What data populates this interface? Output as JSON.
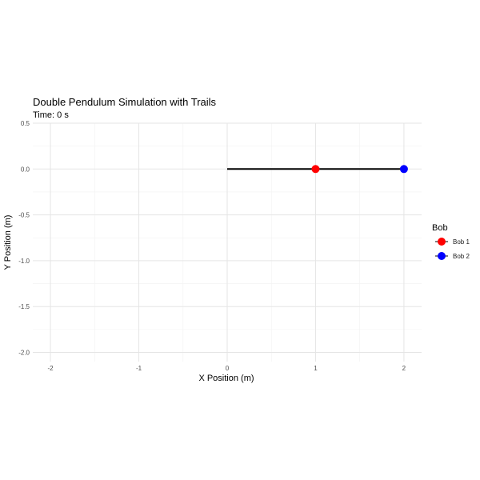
{
  "chart_data": {
    "type": "line",
    "title": "Double Pendulum Simulation with Trails",
    "subtitle": "Time: 0 s",
    "xlabel": "X Position (m)",
    "ylabel": "Y Position (m)",
    "xlim": [
      -2.2,
      2.2
    ],
    "ylim": [
      -2.1,
      0.5
    ],
    "x_ticks": [
      -2,
      -1,
      0,
      1,
      2
    ],
    "x_tick_labels": [
      "-2",
      "-1",
      "0",
      "1",
      "2"
    ],
    "y_ticks": [
      0.5,
      0.0,
      -0.5,
      -1.0,
      -1.5,
      -2.0
    ],
    "y_tick_labels": [
      "0.5",
      "0.0",
      "-0.5",
      "-1.0",
      "-1.5",
      "-2.0"
    ],
    "grid": true,
    "pendulum": {
      "pivot": {
        "x": 0,
        "y": 0
      },
      "rod_color": "#000000"
    },
    "series": [
      {
        "name": "Bob 1",
        "x": 1,
        "y": 0,
        "color": "#ff0000"
      },
      {
        "name": "Bob 2",
        "x": 2,
        "y": 0,
        "color": "#0000ff"
      }
    ],
    "legend": {
      "title": "Bob",
      "placement": "right",
      "entries": [
        "Bob 1",
        "Bob 2"
      ]
    }
  }
}
